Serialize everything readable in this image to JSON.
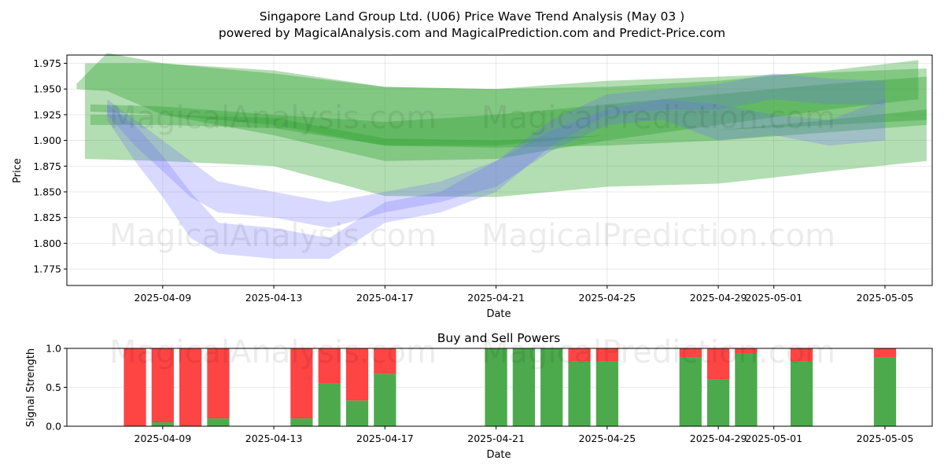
{
  "title_line1": "Singapore Land Group Ltd. (U06) Price Wave Trend Analysis (May 03 )",
  "title_line2": "powered by MagicalAnalysis.com and MagicalPrediction.com and Predict-Price.com",
  "watermarks": [
    "MagicalAnalysis.com",
    "MagicalPrediction.com"
  ],
  "colors": {
    "green": "#2ca02c",
    "blue": "#6666ff",
    "buy": "#4caa4c",
    "sell": "#ff4444",
    "grid": "#b0b0b0"
  },
  "chart_data": [
    {
      "type": "area",
      "xlabel": "Date",
      "ylabel": "Price",
      "x_ticks": [
        "2025-04-09",
        "2025-04-13",
        "2025-04-17",
        "2025-04-21",
        "2025-04-25",
        "2025-04-29",
        "2025-05-01",
        "2025-05-05"
      ],
      "x_tick_days": [
        8,
        12,
        16,
        20,
        24,
        28,
        30,
        34
      ],
      "y_ticks": [
        "1.775",
        "1.800",
        "1.825",
        "1.850",
        "1.875",
        "1.900",
        "1.925",
        "1.950",
        "1.975"
      ],
      "ylim": [
        1.759,
        1.983
      ],
      "grid": true,
      "green_bands": [
        {
          "x": [
            4.9,
            6.0,
            8.0,
            12.0,
            16.0,
            20.0,
            24.0,
            28.0,
            32.0,
            35.2
          ],
          "upper": [
            1.955,
            1.985,
            1.975,
            1.965,
            1.952,
            1.95,
            1.952,
            1.958,
            1.968,
            1.978
          ],
          "lower": [
            1.95,
            1.948,
            1.925,
            1.905,
            1.88,
            1.882,
            1.9,
            1.915,
            1.93,
            1.94
          ]
        },
        {
          "x": [
            5.2,
            8.0,
            12.0,
            16.0,
            20.0,
            24.0,
            28.0,
            32.0,
            35.5
          ],
          "upper": [
            1.975,
            1.975,
            1.968,
            1.952,
            1.95,
            1.958,
            1.962,
            1.966,
            1.97
          ],
          "lower": [
            1.882,
            1.88,
            1.875,
            1.846,
            1.845,
            1.855,
            1.858,
            1.87,
            1.88
          ]
        },
        {
          "x": [
            5.4,
            8.0,
            12.0,
            16.0,
            20.0,
            24.0,
            28.0,
            32.0,
            35.5
          ],
          "upper": [
            1.935,
            1.933,
            1.925,
            1.918,
            1.925,
            1.935,
            1.945,
            1.955,
            1.962
          ],
          "lower": [
            1.928,
            1.925,
            1.915,
            1.895,
            1.895,
            1.905,
            1.91,
            1.915,
            1.92
          ]
        },
        {
          "x": [
            5.4,
            8.0,
            12.0,
            16.0,
            20.0,
            24.0,
            28.0,
            32.0,
            35.5
          ],
          "upper": [
            1.925,
            1.925,
            1.922,
            1.902,
            1.9,
            1.905,
            1.91,
            1.92,
            1.93
          ],
          "lower": [
            1.915,
            1.915,
            1.912,
            1.895,
            1.893,
            1.895,
            1.9,
            1.908,
            1.915
          ]
        }
      ],
      "blue_bands": [
        {
          "x": [
            6.0,
            7.0,
            8.0,
            9.0,
            10.0,
            12.0,
            14.0,
            16.0,
            18.0,
            20.0,
            22.0,
            24.0,
            26.0,
            28.0,
            30.0,
            32.0,
            34.0
          ],
          "upper": [
            1.935,
            1.915,
            1.885,
            1.85,
            1.82,
            1.815,
            1.805,
            1.84,
            1.85,
            1.88,
            1.92,
            1.945,
            1.95,
            1.955,
            1.965,
            1.96,
            1.958
          ],
          "lower": [
            1.92,
            1.88,
            1.845,
            1.805,
            1.79,
            1.785,
            1.785,
            1.82,
            1.83,
            1.85,
            1.895,
            1.925,
            1.93,
            1.93,
            1.94,
            1.935,
            1.935
          ]
        },
        {
          "x": [
            6.0,
            7.0,
            8.0,
            9.0,
            10.0,
            12.0,
            14.0,
            16.0,
            18.0,
            20.0,
            22.0,
            24.0,
            26.0,
            28.0,
            30.0,
            32.0,
            34.0
          ],
          "upper": [
            1.94,
            1.92,
            1.9,
            1.88,
            1.86,
            1.85,
            1.84,
            1.85,
            1.86,
            1.88,
            1.91,
            1.93,
            1.94,
            1.935,
            1.925,
            1.92,
            1.94
          ],
          "lower": [
            1.925,
            1.895,
            1.87,
            1.845,
            1.83,
            1.825,
            1.815,
            1.83,
            1.84,
            1.855,
            1.89,
            1.915,
            1.92,
            1.9,
            1.905,
            1.895,
            1.9
          ]
        }
      ]
    },
    {
      "type": "bar",
      "title": "Buy and Sell Powers",
      "xlabel": "Date",
      "ylabel": "Signal Strength",
      "ylim": [
        0,
        1
      ],
      "y_ticks": [
        "0.0",
        "0.5",
        "1.0"
      ],
      "x_ticks": [
        "2025-04-09",
        "2025-04-13",
        "2025-04-17",
        "2025-04-21",
        "2025-04-25",
        "2025-04-29",
        "2025-05-01",
        "2025-05-05"
      ],
      "x_tick_days": [
        8,
        12,
        16,
        20,
        24,
        28,
        30,
        34
      ],
      "bar_days": [
        7,
        8,
        9,
        10,
        13,
        14,
        15,
        16,
        20,
        21,
        22,
        23,
        24,
        27,
        28,
        29,
        31,
        34
      ],
      "buy": [
        0.0,
        0.05,
        0.0,
        0.1,
        0.1,
        0.55,
        0.33,
        0.67,
        1.0,
        1.0,
        1.0,
        0.83,
        0.83,
        0.88,
        0.6,
        0.93,
        0.83,
        0.88
      ]
    }
  ]
}
